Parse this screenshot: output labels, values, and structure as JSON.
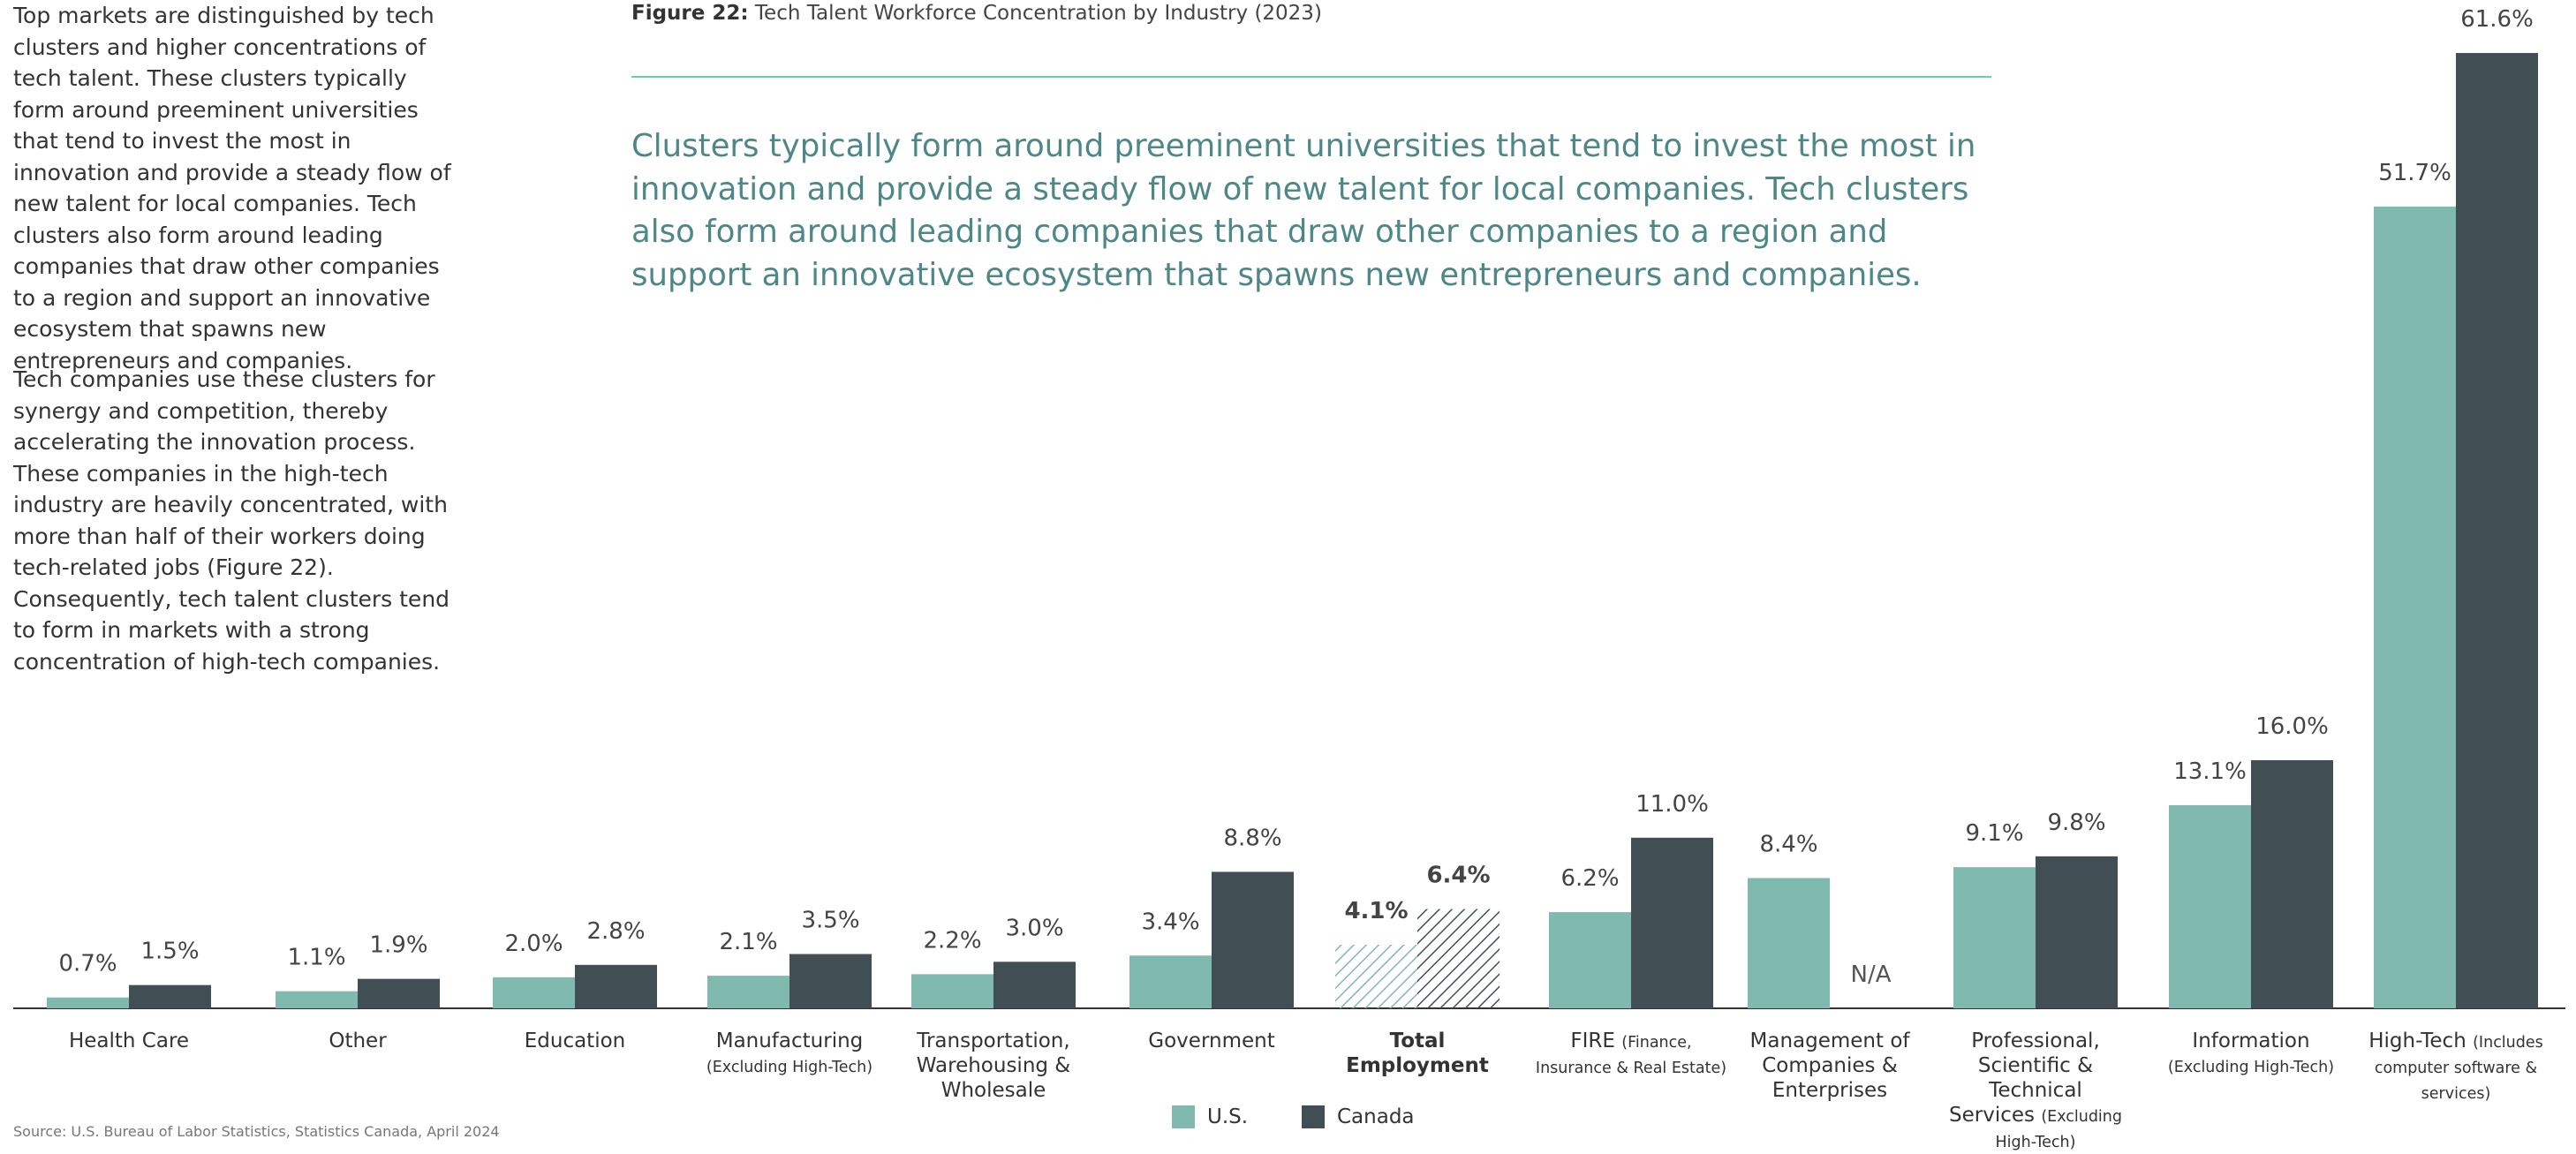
{
  "paragraphs": [
    "Top markets are distinguished by tech clusters and higher concentrations of tech talent. These clusters typically form around preeminent universities that tend to invest the most in innovation and provide a steady flow of new talent for local companies. Tech clusters also form around leading companies that draw other companies to a region and support an innovative ecosystem that spawns new entrepreneurs and companies.",
    "Tech companies use these clusters for synergy and competition, thereby accelerating the innovation process. These companies in the high-tech industry are heavily concentrated, with more than half of their workers doing tech-related jobs (Figure 22). Consequently, tech talent clusters tend to form in markets with a strong concentration of high-tech companies."
  ],
  "figure_label": "Figure 22:",
  "quote": "Clusters typically form around preeminent universities that tend to invest the most in innovation and provide a steady flow of new talent for local companies. Tech clusters also form around leading companies that draw other companies to a region and support an innovative ecosystem that spawns new entrepreneurs and companies.",
  "source": "Source: U.S. Bureau of Labor Statistics, Statistics Canada, April 2024",
  "chart_data": {
    "type": "bar",
    "title": "Tech Talent Workforce Concentration by Industry (2023)",
    "categories": [
      "Health Care",
      "Other",
      "Education",
      "Manufacturing",
      "Transportation, Warehousing & Wholesale",
      "Government",
      "Total Employment",
      "FIRE",
      "Management of Companies & Enterprises",
      "Professional, Scientific & Technical Services",
      "Information",
      "High-Tech"
    ],
    "category_notes": {
      "3": "(Excluding High-Tech)",
      "7": "(Finance, Insurance & Real Estate)",
      "9": "(Excluding High-Tech)",
      "10": "(Excluding High-Tech)",
      "11": "(Includes computer software & services)"
    },
    "ylim": [
      0,
      62
    ],
    "series": [
      {
        "name": "U.S.",
        "color": "#80b9ae",
        "values": [
          0.7,
          1.1,
          2.0,
          2.1,
          2.2,
          3.4,
          4.1,
          6.2,
          8.4,
          9.1,
          13.1,
          51.7
        ],
        "value_labels": [
          "0.7%",
          "1.1%",
          "2.0%",
          "2.1%",
          "2.2%",
          "3.4%",
          "4.1%",
          "6.2%",
          "8.4%",
          "9.1%",
          "13.1%",
          "51.7%"
        ]
      },
      {
        "name": "Canada",
        "color": "#414f54",
        "values": [
          1.5,
          1.9,
          2.8,
          3.5,
          3.0,
          8.8,
          6.4,
          11.0,
          null,
          9.8,
          16.0,
          61.6
        ],
        "value_labels": [
          "1.5%",
          "1.9%",
          "2.8%",
          "3.5%",
          "3.0%",
          "8.8%",
          "6.4%",
          "11.0%",
          "N/A",
          "9.8%",
          "16.0%",
          "61.6%"
        ]
      }
    ]
  }
}
